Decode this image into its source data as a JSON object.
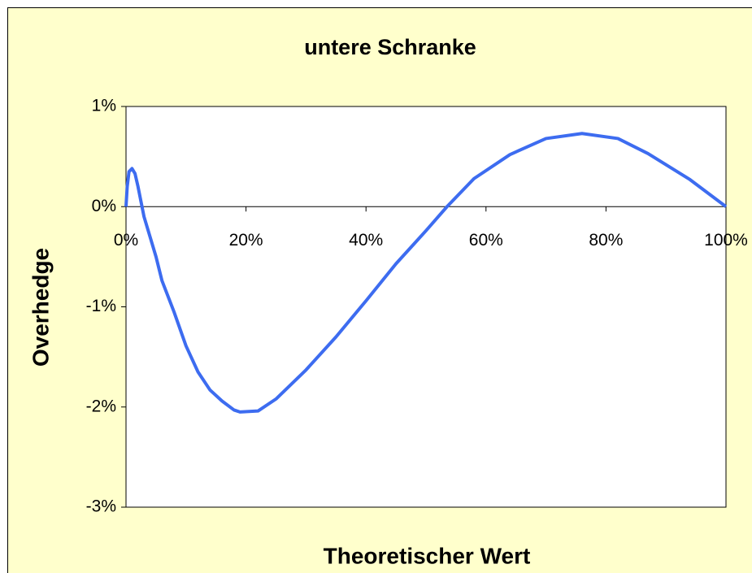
{
  "chart_data": {
    "type": "line",
    "title": "untere Schranke",
    "x_label": "Theoretischer Wert",
    "y_label": "Overhedge",
    "x": [
      0,
      0.2,
      0.5,
      1,
      1.5,
      2,
      2.5,
      3,
      4,
      5,
      6,
      8,
      10,
      12,
      14,
      16,
      18,
      19,
      22,
      25,
      30,
      35,
      40,
      45,
      50,
      53.5,
      58,
      64,
      70,
      76,
      82,
      87,
      94,
      100
    ],
    "values": [
      0,
      0.2,
      0.35,
      0.38,
      0.33,
      0.2,
      0.05,
      -0.1,
      -0.3,
      -0.5,
      -0.74,
      -1.05,
      -1.39,
      -1.65,
      -1.83,
      -1.94,
      -2.03,
      -2.05,
      -2.04,
      -1.92,
      -1.63,
      -1.3,
      -0.94,
      -0.57,
      -0.24,
      0,
      0.28,
      0.52,
      0.68,
      0.73,
      0.68,
      0.53,
      0.27,
      0
    ],
    "color": "#3d6cf0",
    "xlim": [
      0,
      100
    ],
    "ylim": [
      -3,
      1
    ],
    "xticks": [
      {
        "value": 0,
        "label": "0%"
      },
      {
        "value": 20,
        "label": "20%"
      },
      {
        "value": 40,
        "label": "40%"
      },
      {
        "value": 60,
        "label": "60%"
      },
      {
        "value": 80,
        "label": "80%"
      },
      {
        "value": 100,
        "label": "100%"
      }
    ],
    "yticks": [
      {
        "value": -3,
        "label": "-3%"
      },
      {
        "value": -2,
        "label": "-2%"
      },
      {
        "value": -1,
        "label": "-1%"
      },
      {
        "value": 0,
        "label": "0%"
      },
      {
        "value": 1,
        "label": "1%"
      }
    ]
  }
}
